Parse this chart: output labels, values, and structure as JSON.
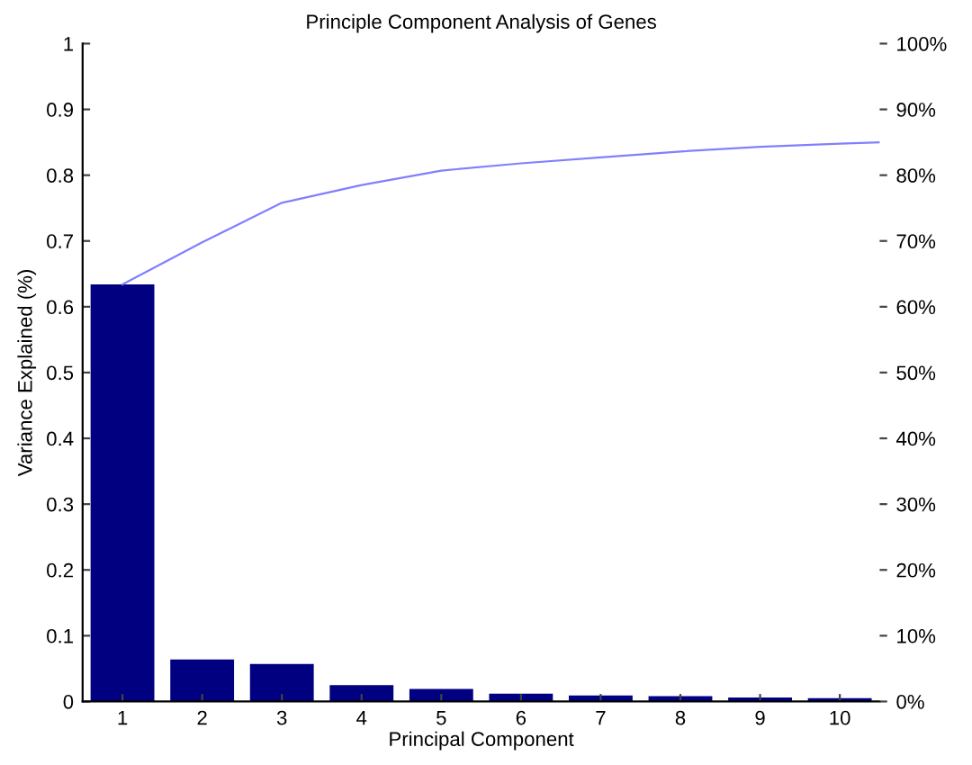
{
  "chart_data": {
    "type": "bar",
    "title": "Principle Component Analysis of Genes",
    "xlabel": "Principal Component",
    "ylabel": "Variance Explained (%)",
    "x": [
      1,
      2,
      3,
      4,
      5,
      6,
      7,
      8,
      9,
      10
    ],
    "series": [
      {
        "color": "#000080",
        "values": [
          0.634,
          0.064,
          0.057,
          0.025,
          0.019,
          0.012,
          0.009,
          0.008,
          0.006,
          0.005
        ]
      },
      {
        "type": "line",
        "axis": "y2",
        "color": "#8080ff",
        "x": [
          1,
          2,
          3,
          4,
          5,
          6,
          7,
          8,
          9,
          10,
          10.5
        ],
        "values": [
          63.4,
          69.8,
          75.8,
          78.5,
          80.7,
          81.8,
          82.7,
          83.6,
          84.3,
          84.8,
          85.0
        ]
      }
    ],
    "xlim": [
      0.5,
      10.5
    ],
    "xticks": [
      1,
      2,
      3,
      4,
      5,
      6,
      7,
      8,
      9,
      10
    ],
    "ylim": [
      0,
      1
    ],
    "yticks": [
      0,
      0.1,
      0.2,
      0.3,
      0.4,
      0.5,
      0.6,
      0.7,
      0.8,
      0.9,
      1
    ],
    "y2lim": [
      0,
      100
    ],
    "y2ticks": [
      {
        "value": 0,
        "label": "0%"
      },
      {
        "value": 10,
        "label": "10%"
      },
      {
        "value": 20,
        "label": "20%"
      },
      {
        "value": 30,
        "label": "30%"
      },
      {
        "value": 40,
        "label": "40%"
      },
      {
        "value": 50,
        "label": "50%"
      },
      {
        "value": 60,
        "label": "60%"
      },
      {
        "value": 70,
        "label": "70%"
      },
      {
        "value": 80,
        "label": "80%"
      },
      {
        "value": 90,
        "label": "90%"
      },
      {
        "value": 100,
        "label": "100%"
      }
    ],
    "grid": false,
    "legend": false
  }
}
